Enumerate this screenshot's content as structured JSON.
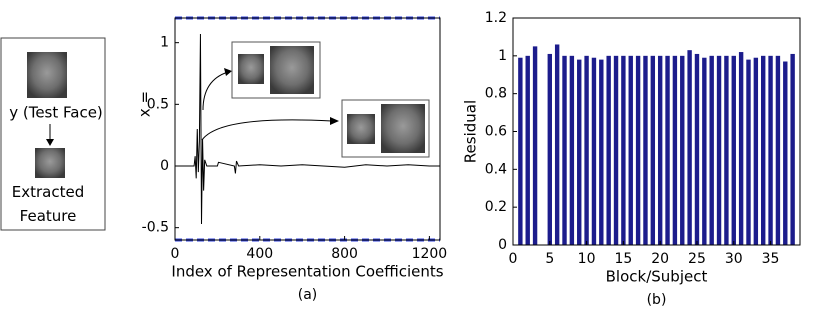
{
  "panel": {
    "test_label": "y (Test Face)",
    "feature_label": "Extracted\nFeature"
  },
  "chart_data": [
    {
      "type": "line",
      "xlabel": "Index of Representation Coefficients",
      "ylabel": "x =",
      "caption": "(a)",
      "x": [
        0,
        90,
        95,
        100,
        105,
        110,
        115,
        120,
        125,
        130,
        135,
        140,
        150,
        200,
        205,
        280,
        285,
        290,
        300,
        400,
        500,
        600,
        700,
        800,
        900,
        1000,
        1100,
        1200,
        1250
      ],
      "values": [
        0,
        0,
        0.08,
        -0.1,
        0.3,
        -0.05,
        0.2,
        1.07,
        -0.47,
        0.22,
        -0.2,
        0.05,
        0,
        0,
        0.03,
        0,
        -0.06,
        0.04,
        0,
        0.01,
        0,
        0.01,
        0,
        -0.01,
        0.01,
        0,
        0.01,
        0,
        0
      ],
      "color": "#000000",
      "reference_lines": [
        1.2,
        -0.6
      ],
      "reference_color": "#3344dd",
      "xlim": [
        0,
        1250
      ],
      "ylim": [
        -0.6,
        1.2
      ],
      "xticks": [
        0,
        400,
        800,
        1200
      ],
      "yticks": [
        -0.5,
        0,
        0.5,
        1
      ]
    },
    {
      "type": "bar",
      "xlabel": "Block/Subject",
      "ylabel": "Residual",
      "caption": "(b)",
      "x": [
        1,
        2,
        3,
        4,
        5,
        6,
        7,
        8,
        9,
        10,
        11,
        12,
        13,
        14,
        15,
        16,
        17,
        18,
        19,
        20,
        21,
        22,
        23,
        24,
        25,
        26,
        27,
        28,
        29,
        30,
        31,
        32,
        33,
        34,
        35,
        36,
        37,
        38
      ],
      "values": [
        0.99,
        1.0,
        1.05,
        null,
        1.01,
        1.06,
        1.0,
        1.0,
        0.98,
        1.0,
        0.99,
        0.98,
        1.0,
        1.0,
        1.0,
        1.0,
        1.0,
        1.0,
        1.0,
        1.0,
        1.0,
        1.0,
        1.0,
        1.03,
        1.01,
        0.99,
        1.0,
        1.0,
        1.0,
        1.0,
        1.02,
        0.98,
        0.99,
        1.0,
        1.0,
        1.0,
        0.97,
        1.01
      ],
      "color": "#1c1c8c",
      "xlim": [
        0,
        39
      ],
      "ylim": [
        0,
        1.2
      ],
      "xticks": [
        0,
        5,
        10,
        15,
        20,
        25,
        30,
        35
      ],
      "yticks": [
        0,
        0.2,
        0.4,
        0.6,
        0.8,
        1,
        1.2
      ]
    }
  ]
}
